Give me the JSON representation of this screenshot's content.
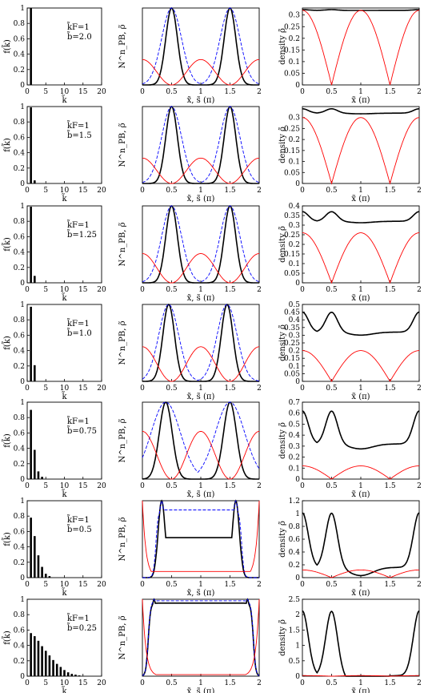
{
  "figure": {
    "columns": [
      {
        "ylabel": "f(k̃)",
        "xlabel": "k̃"
      },
      {
        "ylabel": "N^n_PB, ρ̃",
        "xlabel": "x̃,  s̃  (π)"
      },
      {
        "ylabel": "density ρ̃",
        "xlabel": "x̃  (π)"
      }
    ]
  },
  "colors": {
    "solid": "#000000",
    "red": "#ff0000",
    "blue_dashed": "#0000ff"
  },
  "chart_data": [
    {
      "type": "bar",
      "row": 1,
      "panel": "f_k",
      "annotation_kf": "k̃F=1",
      "annotation_b": "b̃=2.0",
      "xlim": [
        0,
        20
      ],
      "ylim": [
        0,
        1
      ],
      "x_ticks": [
        "0",
        "5",
        "10",
        "15",
        "20"
      ],
      "y_ticks": [
        "0",
        "0.2",
        "0.4",
        "0.6",
        "0.8",
        "1"
      ],
      "categories": [
        1,
        2,
        3,
        4,
        5,
        6,
        7,
        8,
        9,
        10,
        11,
        12,
        13,
        14,
        15,
        16,
        17,
        18,
        19,
        20
      ],
      "values": [
        1.0,
        0,
        0,
        0,
        0,
        0,
        0,
        0,
        0,
        0,
        0,
        0,
        0,
        0,
        0,
        0,
        0,
        0,
        0,
        0
      ]
    },
    {
      "type": "line",
      "row": 1,
      "panel": "N_PB_rho",
      "xlim": [
        0,
        2
      ],
      "ylim": [
        0,
        1
      ],
      "x_ticks": [
        "0",
        "0.5",
        "1",
        "1.5",
        "2"
      ],
      "series": [
        {
          "style": "black",
          "formula": "NPB",
          "params": {
            "kind": "bell",
            "c1": 0.5,
            "c2": 1.5,
            "width": 0.1
          }
        },
        {
          "style": "blue_dashed",
          "formula": "Nstate",
          "params": {
            "kind": "bell",
            "c1": 0.5,
            "c2": 1.5,
            "width": 0.17
          }
        },
        {
          "style": "red",
          "formula": "rho_norm",
          "params": {
            "kind": "cos",
            "amp": 0.33,
            "floor": 0
          }
        }
      ]
    },
    {
      "type": "line",
      "row": 1,
      "panel": "density",
      "xlim": [
        0,
        2
      ],
      "ylim": [
        0,
        0.33
      ],
      "x_ticks": [
        "0",
        "0.5",
        "1",
        "1.5",
        "2"
      ],
      "y_ticks": [
        "0",
        "0.05",
        "0.1",
        "0.15",
        "0.2",
        "0.25",
        "0.3"
      ],
      "series": [
        {
          "style": "black",
          "formula": "density_total",
          "params": {
            "base": 0.32,
            "ripple": 0.003
          }
        },
        {
          "style": "red",
          "formula": "density_part",
          "params": {
            "amp": 0.32
          }
        }
      ]
    },
    {
      "type": "bar",
      "row": 2,
      "panel": "f_k",
      "annotation_kf": "k̃F=1",
      "annotation_b": "b̃=1.5",
      "xlim": [
        0,
        20
      ],
      "ylim": [
        0,
        1
      ],
      "x_ticks": [
        "0",
        "5",
        "10",
        "15",
        "20"
      ],
      "y_ticks": [
        "0",
        "0.2",
        "0.4",
        "0.6",
        "0.8",
        "1"
      ],
      "categories": [
        1,
        2,
        3,
        4,
        5,
        6,
        7,
        8,
        9,
        10,
        11,
        12,
        13,
        14,
        15,
        16,
        17,
        18,
        19,
        20
      ],
      "values": [
        0.99,
        0.04,
        0,
        0,
        0,
        0,
        0,
        0,
        0,
        0,
        0,
        0,
        0,
        0,
        0,
        0,
        0,
        0,
        0,
        0
      ]
    },
    {
      "type": "line",
      "row": 2,
      "panel": "N_PB_rho",
      "xlim": [
        0,
        2
      ],
      "ylim": [
        0,
        1
      ],
      "x_ticks": [
        "0",
        "0.5",
        "1",
        "1.5",
        "2"
      ],
      "series": [
        {
          "style": "black",
          "params": {
            "kind": "bell",
            "c1": 0.5,
            "c2": 1.5,
            "width": 0.1
          }
        },
        {
          "style": "blue_dashed",
          "params": {
            "kind": "bell",
            "c1": 0.5,
            "c2": 1.5,
            "width": 0.17
          }
        },
        {
          "style": "red",
          "params": {
            "kind": "cos",
            "amp": 0.33,
            "floor": 0
          }
        }
      ]
    },
    {
      "type": "line",
      "row": 2,
      "panel": "density",
      "xlim": [
        0,
        2
      ],
      "ylim": [
        0,
        0.35
      ],
      "x_ticks": [
        "0",
        "0.5",
        "1",
        "1.5",
        "2"
      ],
      "y_ticks": [
        "0",
        "0.05",
        "0.1",
        "0.15",
        "0.2",
        "0.25",
        "0.3"
      ],
      "series": [
        {
          "style": "black",
          "params": {
            "base": 0.32,
            "ripple": 0.02
          }
        },
        {
          "style": "red",
          "params": {
            "amp": 0.3
          }
        }
      ]
    },
    {
      "type": "bar",
      "row": 3,
      "panel": "f_k",
      "annotation_kf": "k̃F=1",
      "annotation_b": "b̃=1.25",
      "xlim": [
        0,
        20
      ],
      "ylim": [
        0,
        1
      ],
      "x_ticks": [
        "0",
        "5",
        "10",
        "15",
        "20"
      ],
      "y_ticks": [
        "0",
        "0.2",
        "0.4",
        "0.6",
        "0.8",
        "1"
      ],
      "categories": [
        1,
        2,
        3,
        4,
        5,
        6,
        7,
        8,
        9,
        10,
        11,
        12,
        13,
        14,
        15,
        16,
        17,
        18,
        19,
        20
      ],
      "values": [
        0.99,
        0.09,
        0,
        0,
        0,
        0,
        0,
        0,
        0,
        0,
        0,
        0,
        0,
        0,
        0,
        0,
        0,
        0,
        0,
        0
      ]
    },
    {
      "type": "line",
      "row": 3,
      "panel": "N_PB_rho",
      "xlim": [
        0,
        2
      ],
      "ylim": [
        0,
        1
      ],
      "x_ticks": [
        "0",
        "0.5",
        "1",
        "1.5",
        "2"
      ],
      "series": [
        {
          "style": "black",
          "params": {
            "kind": "bell",
            "c1": 0.5,
            "c2": 1.5,
            "width": 0.1
          }
        },
        {
          "style": "blue_dashed",
          "params": {
            "kind": "bell",
            "c1": 0.5,
            "c2": 1.5,
            "width": 0.17
          }
        },
        {
          "style": "red",
          "params": {
            "kind": "cos",
            "amp": 0.38,
            "floor": 0
          }
        }
      ]
    },
    {
      "type": "line",
      "row": 3,
      "panel": "density",
      "xlim": [
        0,
        2
      ],
      "ylim": [
        0,
        0.4
      ],
      "x_ticks": [
        "0",
        "0.5",
        "1",
        "1.5",
        "2"
      ],
      "y_ticks": [
        "0",
        "0.05",
        "0.1",
        "0.15",
        "0.2",
        "0.25",
        "0.3",
        "0.35",
        "0.4"
      ],
      "series": [
        {
          "style": "black",
          "params": {
            "base": 0.32,
            "ripple": 0.05
          }
        },
        {
          "style": "red",
          "params": {
            "amp": 0.26
          }
        }
      ]
    },
    {
      "type": "bar",
      "row": 4,
      "panel": "f_k",
      "annotation_kf": "k̃F=1",
      "annotation_b": "b̃=1.0",
      "xlim": [
        0,
        20
      ],
      "ylim": [
        0,
        1
      ],
      "x_ticks": [
        "0",
        "5",
        "10",
        "15",
        "20"
      ],
      "y_ticks": [
        "0",
        "0.2",
        "0.4",
        "0.6",
        "0.8",
        "1"
      ],
      "categories": [
        1,
        2,
        3,
        4,
        5,
        6,
        7,
        8,
        9,
        10,
        11,
        12,
        13,
        14,
        15,
        16,
        17,
        18,
        19,
        20
      ],
      "values": [
        0.97,
        0.21,
        0,
        0,
        0,
        0,
        0,
        0,
        0,
        0,
        0,
        0,
        0,
        0,
        0,
        0,
        0,
        0,
        0,
        0
      ]
    },
    {
      "type": "line",
      "row": 4,
      "panel": "N_PB_rho",
      "xlim": [
        0,
        2
      ],
      "ylim": [
        0,
        1
      ],
      "x_ticks": [
        "0",
        "0.5",
        "1",
        "1.5",
        "2"
      ],
      "series": [
        {
          "style": "black",
          "params": {
            "kind": "bell",
            "c1": 0.45,
            "c2": 1.45,
            "width": 0.1
          }
        },
        {
          "style": "blue_dashed",
          "params": {
            "kind": "bell",
            "c1": 0.45,
            "c2": 1.45,
            "width": 0.17
          }
        },
        {
          "style": "red",
          "params": {
            "kind": "cos",
            "amp": 0.45,
            "floor": 0
          }
        }
      ]
    },
    {
      "type": "line",
      "row": 4,
      "panel": "density",
      "xlim": [
        0,
        2
      ],
      "ylim": [
        0,
        0.5
      ],
      "x_ticks": [
        "0",
        "0.5",
        "1",
        "1.5",
        "2"
      ],
      "y_ticks": [
        "0",
        "0.05",
        "0.1",
        "0.15",
        "0.2",
        "0.25",
        "0.3",
        "0.35",
        "0.4",
        "0.45",
        "0.5"
      ],
      "series": [
        {
          "style": "black",
          "params": {
            "base": 0.32,
            "ripple": 0.13
          }
        },
        {
          "style": "red",
          "params": {
            "amp": 0.2
          }
        }
      ]
    },
    {
      "type": "bar",
      "row": 5,
      "panel": "f_k",
      "annotation_kf": "k̃F=1",
      "annotation_b": "b̃=0.75",
      "xlim": [
        0,
        20
      ],
      "ylim": [
        0,
        1
      ],
      "x_ticks": [
        "0",
        "5",
        "10",
        "15",
        "20"
      ],
      "y_ticks": [
        "0",
        "0.2",
        "0.4",
        "0.6",
        "0.8",
        "1"
      ],
      "categories": [
        1,
        2,
        3,
        4,
        5,
        6,
        7,
        8,
        9,
        10,
        11,
        12,
        13,
        14,
        15,
        16,
        17,
        18,
        19,
        20
      ],
      "values": [
        0.9,
        0.38,
        0.1,
        0.03,
        0,
        0,
        0,
        0,
        0,
        0,
        0,
        0,
        0,
        0,
        0,
        0,
        0,
        0,
        0,
        0
      ]
    },
    {
      "type": "line",
      "row": 5,
      "panel": "N_PB_rho",
      "xlim": [
        0,
        2
      ],
      "ylim": [
        0,
        1
      ],
      "x_ticks": [
        "0",
        "0.5",
        "1",
        "1.5",
        "2"
      ],
      "series": [
        {
          "style": "black",
          "params": {
            "kind": "bell",
            "c1": 0.4,
            "c2": 1.5,
            "width": 0.11
          }
        },
        {
          "style": "blue_dashed",
          "params": {
            "kind": "bell",
            "c1": 0.4,
            "c2": 1.5,
            "width": 0.25
          }
        },
        {
          "style": "red",
          "params": {
            "kind": "cos",
            "amp": 0.62,
            "floor": 0
          }
        }
      ]
    },
    {
      "type": "line",
      "row": 5,
      "panel": "density",
      "xlim": [
        0,
        2
      ],
      "ylim": [
        0,
        0.7
      ],
      "x_ticks": [
        "0",
        "0.5",
        "1",
        "1.5",
        "2"
      ],
      "y_ticks": [
        "0",
        "0.1",
        "0.2",
        "0.3",
        "0.4",
        "0.5",
        "0.6",
        "0.7"
      ],
      "series": [
        {
          "style": "black",
          "params": {
            "base": 0.32,
            "ripple": 0.3
          }
        },
        {
          "style": "red",
          "params": {
            "amp": 0.12
          }
        }
      ]
    },
    {
      "type": "bar",
      "row": 6,
      "panel": "f_k",
      "annotation_kf": "k̃F=1",
      "annotation_b": "b̃=0.5",
      "xlim": [
        0,
        20
      ],
      "ylim": [
        0,
        1
      ],
      "x_ticks": [
        "0",
        "5",
        "10",
        "15",
        "20"
      ],
      "y_ticks": [
        "0",
        "0.2",
        "0.4",
        "0.6",
        "0.8",
        "1"
      ],
      "categories": [
        1,
        2,
        3,
        4,
        5,
        6,
        7,
        8,
        9,
        10,
        11,
        12,
        13,
        14,
        15,
        16,
        17,
        18,
        19,
        20
      ],
      "values": [
        0.78,
        0.54,
        0.29,
        0.14,
        0.05,
        0.02,
        0,
        0,
        0,
        0,
        0,
        0,
        0,
        0,
        0,
        0,
        0,
        0,
        0,
        0
      ]
    },
    {
      "type": "line",
      "row": 6,
      "panel": "N_PB_rho",
      "xlim": [
        0,
        2
      ],
      "ylim": [
        0,
        1
      ],
      "x_ticks": [
        "0",
        "0.5",
        "1",
        "1.5",
        "2"
      ],
      "series": [
        {
          "style": "black",
          "params": {
            "kind": "plateau",
            "lo": 0.52,
            "hi": 1.0,
            "c1": 0.33,
            "c2": 1.6
          }
        },
        {
          "style": "blue_dashed",
          "params": {
            "kind": "plateau",
            "lo": 0.88,
            "hi": 1.0,
            "c1": 0.33,
            "c2": 1.6
          }
        },
        {
          "style": "red",
          "params": {
            "kind": "edges",
            "amp": 1.0,
            "floor": 0.08
          }
        }
      ]
    },
    {
      "type": "line",
      "row": 6,
      "panel": "density",
      "xlim": [
        0,
        2
      ],
      "ylim": [
        0,
        1.2
      ],
      "x_ticks": [
        "0",
        "0.5",
        "1",
        "1.5",
        "2"
      ],
      "y_ticks": [
        "0",
        "0.2",
        "0.4",
        "0.6",
        "0.8",
        "1",
        "1.2"
      ],
      "series": [
        {
          "style": "black",
          "params": {
            "base": 0.16,
            "ripple": 0.85
          }
        },
        {
          "style": "red",
          "params": {
            "amp": 0.12
          }
        }
      ]
    },
    {
      "type": "bar",
      "row": 7,
      "panel": "f_k",
      "annotation_kf": "k̃F=1",
      "annotation_b": "b̃=0.25",
      "xlim": [
        0,
        20
      ],
      "ylim": [
        0,
        1
      ],
      "x_ticks": [
        "0",
        "5",
        "10",
        "15",
        "20"
      ],
      "y_ticks": [
        "0",
        "0.2",
        "0.4",
        "0.6",
        "0.8",
        "1"
      ],
      "categories": [
        1,
        2,
        3,
        4,
        5,
        6,
        7,
        8,
        9,
        10,
        11,
        12,
        13,
        14,
        15,
        16,
        17,
        18,
        19,
        20
      ],
      "values": [
        0.56,
        0.52,
        0.46,
        0.39,
        0.33,
        0.27,
        0.21,
        0.16,
        0.12,
        0.08,
        0.05,
        0.03,
        0.02,
        0.01,
        0,
        0,
        0,
        0,
        0,
        0
      ]
    },
    {
      "type": "line",
      "row": 7,
      "panel": "N_PB_rho",
      "xlim": [
        0,
        2
      ],
      "ylim": [
        0,
        1
      ],
      "x_ticks": [
        "0",
        "0.5",
        "1",
        "1.5",
        "2"
      ],
      "series": [
        {
          "style": "black",
          "params": {
            "kind": "plateau",
            "lo": 0.95,
            "hi": 1.0,
            "c1": 0.2,
            "c2": 1.8
          }
        },
        {
          "style": "blue_dashed",
          "params": {
            "kind": "plateau",
            "lo": 0.98,
            "hi": 1.0,
            "c1": 0.2,
            "c2": 1.8
          }
        },
        {
          "style": "red",
          "params": {
            "kind": "edges",
            "amp": 1.0,
            "floor": 0.02
          }
        }
      ]
    },
    {
      "type": "line",
      "row": 7,
      "panel": "density",
      "xlim": [
        0,
        2
      ],
      "ylim": [
        0,
        2.5
      ],
      "x_ticks": [
        "0",
        "0.5",
        "1",
        "1.5",
        "2"
      ],
      "y_ticks": [
        "0",
        "0.5",
        "1",
        "1.5",
        "2",
        "2.5"
      ],
      "series": [
        {
          "style": "black",
          "params": {
            "base": 0.02,
            "ripple": 2.1
          }
        },
        {
          "style": "red",
          "params": {
            "amp": 0.02
          }
        }
      ]
    }
  ]
}
